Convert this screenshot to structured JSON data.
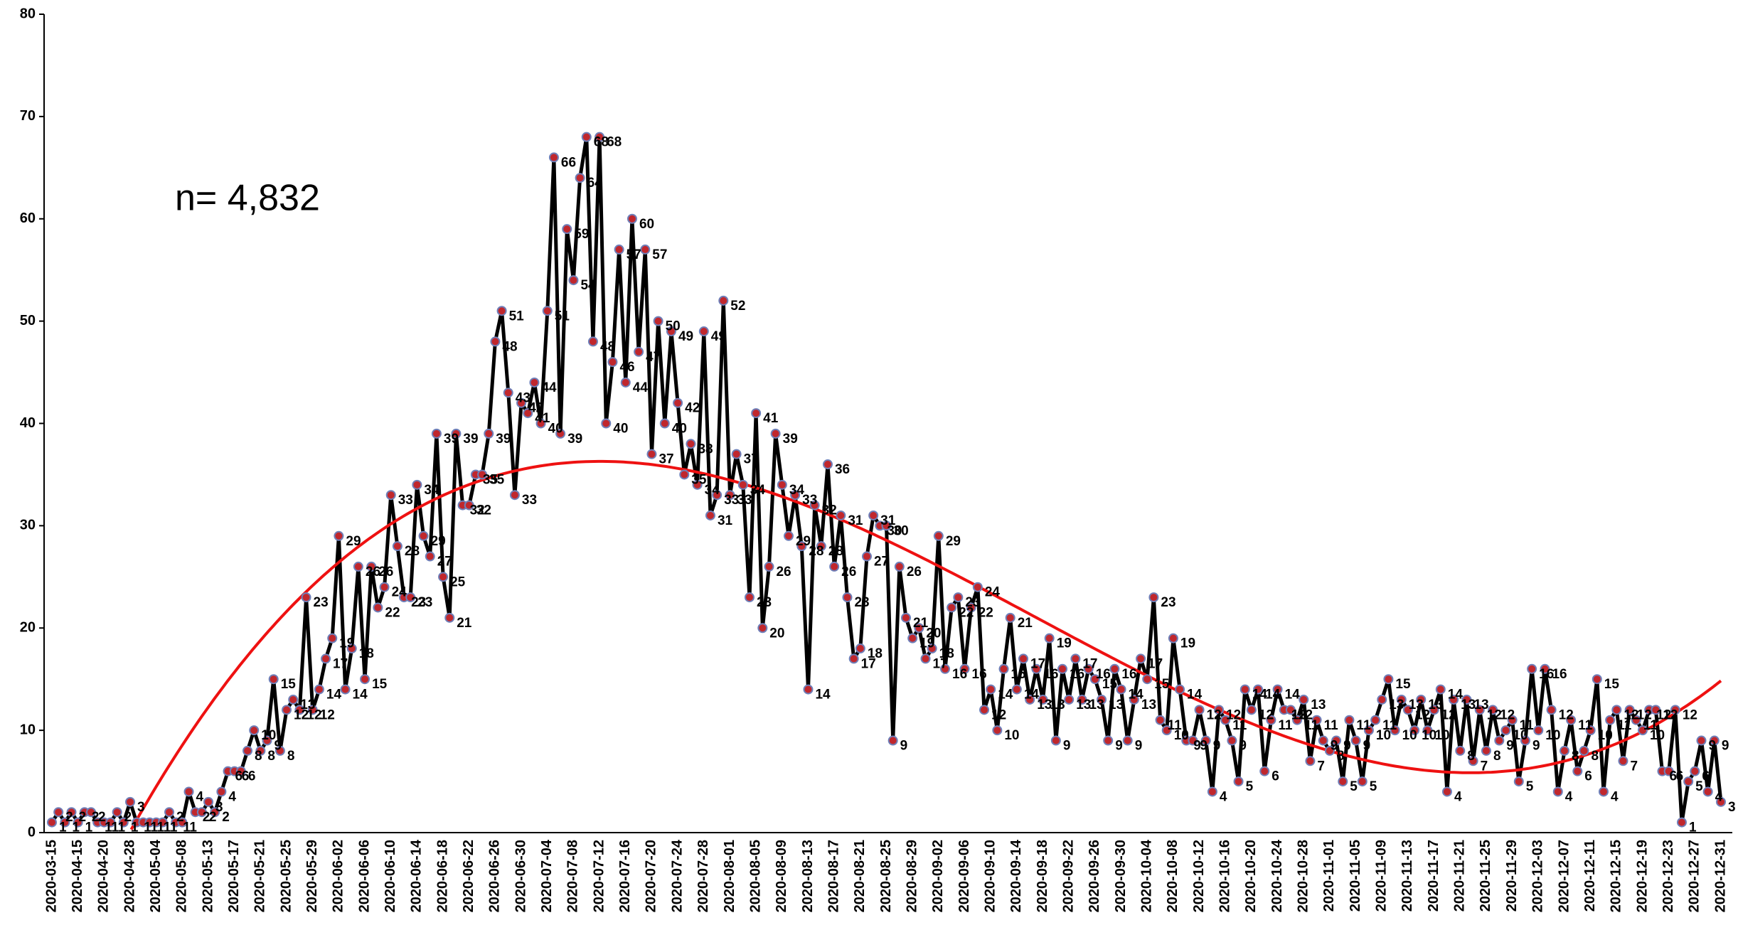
{
  "chart_data": {
    "type": "line",
    "annotation": "n= 4,832",
    "color": "#000000",
    "marker_color": "#c0272d",
    "marker_edge_color": "#6f7fb8",
    "trendline": "polynomial",
    "trend_color": "#ee1111",
    "grid": false,
    "ylim": [
      0,
      80
    ],
    "yticks": [
      0,
      10,
      20,
      30,
      40,
      50,
      60,
      70,
      80
    ],
    "categories": [
      "2020-03-15",
      null,
      null,
      null,
      "2020-04-15",
      null,
      null,
      null,
      "2020-04-20",
      null,
      null,
      null,
      "2020-04-28",
      null,
      null,
      null,
      "2020-05-04",
      null,
      null,
      null,
      "2020-05-08",
      null,
      null,
      null,
      "2020-05-13",
      null,
      null,
      null,
      "2020-05-17",
      null,
      null,
      null,
      "2020-05-21",
      null,
      null,
      null,
      "2020-05-25",
      null,
      null,
      null,
      "2020-05-29",
      null,
      null,
      null,
      "2020-06-02",
      null,
      null,
      null,
      "2020-06-06",
      null,
      null,
      null,
      "2020-06-10",
      null,
      null,
      null,
      "2020-06-14",
      null,
      null,
      null,
      "2020-06-18",
      null,
      null,
      null,
      "2020-06-22",
      null,
      null,
      null,
      "2020-06-26",
      null,
      null,
      null,
      "2020-06-30",
      null,
      null,
      null,
      "2020-07-04",
      null,
      null,
      null,
      "2020-07-08",
      null,
      null,
      null,
      "2020-07-12",
      null,
      null,
      null,
      "2020-07-16",
      null,
      null,
      null,
      "2020-07-20",
      null,
      null,
      null,
      "2020-07-24",
      null,
      null,
      null,
      "2020-07-28",
      null,
      null,
      null,
      "2020-08-01",
      null,
      null,
      null,
      "2020-08-05",
      null,
      null,
      null,
      "2020-08-09",
      null,
      null,
      null,
      "2020-08-13",
      null,
      null,
      null,
      "2020-08-17",
      null,
      null,
      null,
      "2020-08-21",
      null,
      null,
      null,
      "2020-08-25",
      null,
      null,
      null,
      "2020-08-29",
      null,
      null,
      null,
      "2020-09-02",
      null,
      null,
      null,
      "2020-09-06",
      null,
      null,
      null,
      "2020-09-10",
      null,
      null,
      null,
      "2020-09-14",
      null,
      null,
      null,
      "2020-09-18",
      null,
      null,
      null,
      "2020-09-22",
      null,
      null,
      null,
      "2020-09-26",
      null,
      null,
      null,
      "2020-09-30",
      null,
      null,
      null,
      "2020-10-04",
      null,
      null,
      null,
      "2020-10-08",
      null,
      null,
      null,
      "2020-10-12",
      null,
      null,
      null,
      "2020-10-16",
      null,
      null,
      null,
      "2020-10-20",
      null,
      null,
      null,
      "2020-10-24",
      null,
      null,
      null,
      "2020-10-28",
      null,
      null,
      null,
      "2020-11-01",
      null,
      null,
      null,
      "2020-11-05",
      null,
      null,
      null,
      "2020-11-09",
      null,
      null,
      null,
      "2020-11-13",
      null,
      null,
      null,
      "2020-11-17",
      null,
      null,
      null,
      "2020-11-21",
      null,
      null,
      null,
      "2020-11-25",
      null,
      null,
      null,
      "2020-11-29",
      null,
      null,
      null,
      "2020-12-03",
      null,
      null,
      null,
      "2020-12-07",
      null,
      null,
      null,
      "2020-12-11",
      null,
      null,
      null,
      "2020-12-15",
      null,
      null,
      null,
      "2020-12-19",
      null,
      null,
      null,
      "2020-12-23",
      null,
      null,
      null,
      "2020-12-27",
      null,
      null,
      null,
      "2020-12-31"
    ],
    "values": [
      1,
      2,
      1,
      2,
      1,
      2,
      2,
      1,
      1,
      1,
      2,
      1,
      3,
      1,
      1,
      1,
      1,
      1,
      2,
      1,
      1,
      4,
      2,
      2,
      3,
      2,
      4,
      6,
      6,
      6,
      8,
      10,
      8,
      9,
      15,
      8,
      12,
      13,
      12,
      23,
      12,
      14,
      17,
      19,
      29,
      14,
      18,
      26,
      15,
      26,
      22,
      24,
      33,
      28,
      23,
      23,
      34,
      29,
      27,
      39,
      25,
      21,
      39,
      32,
      32,
      35,
      35,
      39,
      48,
      51,
      43,
      33,
      42,
      41,
      44,
      40,
      51,
      66,
      39,
      59,
      54,
      64,
      68,
      48,
      68,
      40,
      46,
      57,
      44,
      60,
      47,
      57,
      37,
      50,
      40,
      49,
      42,
      35,
      38,
      34,
      49,
      31,
      33,
      52,
      33,
      37,
      34,
      23,
      41,
      20,
      26,
      39,
      34,
      29,
      33,
      28,
      14,
      32,
      28,
      36,
      26,
      31,
      23,
      17,
      18,
      27,
      31,
      30,
      30,
      9,
      26,
      21,
      19,
      20,
      17,
      18,
      29,
      16,
      22,
      23,
      16,
      22,
      24,
      12,
      14,
      10,
      16,
      21,
      14,
      17,
      13,
      16,
      13,
      19,
      9,
      16,
      13,
      17,
      13,
      16,
      15,
      13,
      9,
      16,
      14,
      9,
      13,
      17,
      15,
      23,
      11,
      10,
      19,
      14,
      9,
      9,
      12,
      9,
      4,
      12,
      11,
      9,
      5,
      14,
      12,
      14,
      6,
      11,
      14,
      12,
      12,
      11,
      13,
      7,
      11,
      9,
      8,
      9,
      5,
      11,
      9,
      5,
      10,
      11,
      13,
      15,
      10,
      13,
      12,
      10,
      13,
      10,
      12,
      14,
      4,
      13,
      8,
      13,
      7,
      12,
      8,
      12,
      9,
      10,
      11,
      5,
      9,
      16,
      10,
      16,
      12,
      4,
      8,
      11,
      6,
      8,
      10,
      15,
      4,
      11,
      12,
      7,
      12,
      11,
      10,
      12,
      12,
      6,
      6,
      12,
      1,
      5,
      6,
      9,
      4,
      9,
      3
    ]
  }
}
